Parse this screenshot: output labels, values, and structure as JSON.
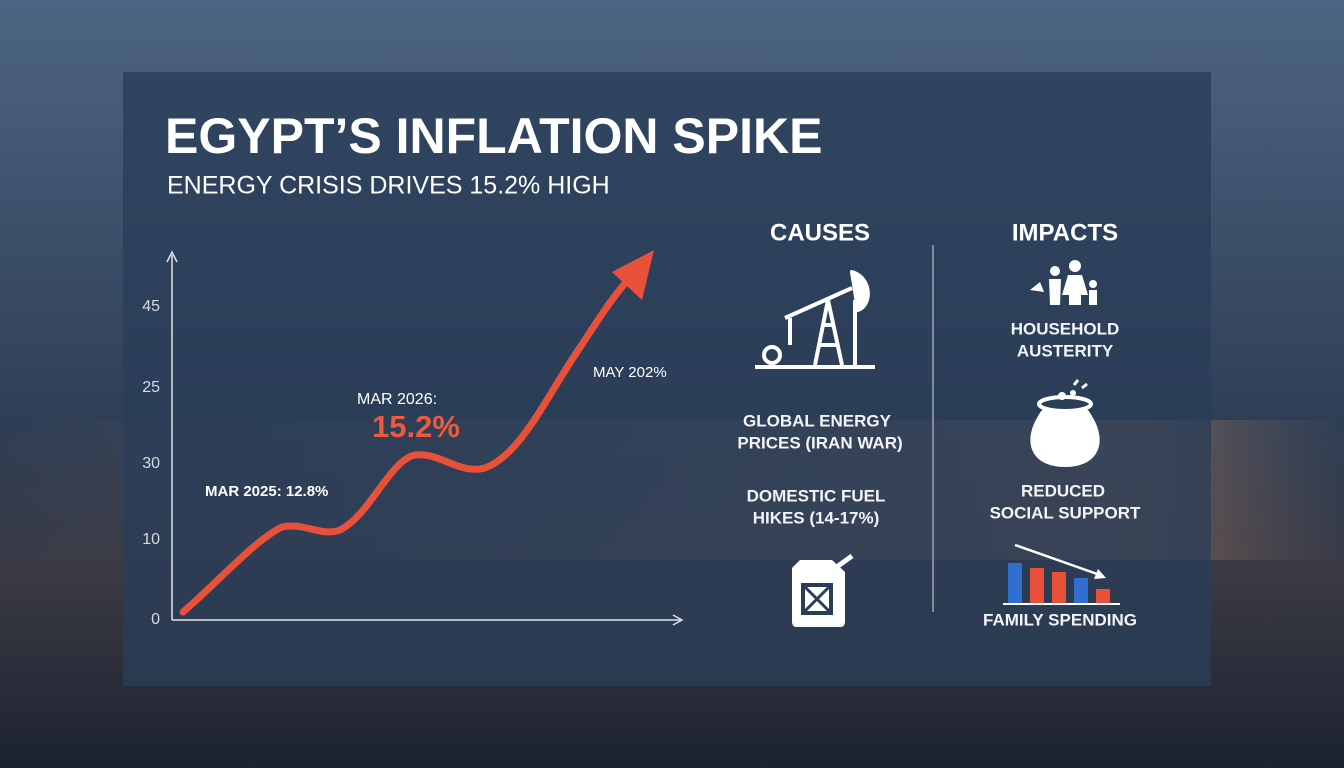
{
  "header": {
    "title": "EGYPT’S INFLATION SPIKE",
    "subtitle": "ENERGY CRISIS DRIVES 15.2% HIGH"
  },
  "chart": {
    "y_axis_labels": [
      "45",
      "25",
      "30",
      "10",
      "0"
    ],
    "annotations": [
      "MAR 2025: 12.8%",
      "MAR 2026:",
      "15.2%",
      "MAY 202%"
    ]
  },
  "causes": {
    "heading": "CAUSES",
    "items": [
      {
        "lines": [
          "GLOBAL ENERGY",
          "PRICES (IRAN WAR)"
        ]
      },
      {
        "lines": [
          "DOMESTIC FUEL",
          "HIKES (14-17%)"
        ]
      }
    ]
  },
  "impacts": {
    "heading": "IMPACTS",
    "items": [
      {
        "lines": [
          "HOUSEHOLD",
          "AUSTERITY"
        ]
      },
      {
        "lines": [
          "REDUCED",
          "SOCIAL SUPPORT"
        ]
      },
      {
        "lines": [
          "FAMILY SPENDING"
        ]
      }
    ]
  }
}
